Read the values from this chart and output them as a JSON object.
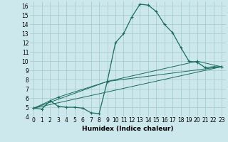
{
  "xlabel": "Humidex (Indice chaleur)",
  "bg_color": "#cce8ec",
  "line_color": "#1a6b60",
  "grid_color": "#a0c8cc",
  "xlim": [
    -0.5,
    23.5
  ],
  "ylim": [
    4,
    16.5
  ],
  "yticks": [
    4,
    5,
    6,
    7,
    8,
    9,
    10,
    11,
    12,
    13,
    14,
    15,
    16
  ],
  "xticks": [
    0,
    1,
    2,
    3,
    4,
    5,
    6,
    7,
    8,
    9,
    10,
    11,
    12,
    13,
    14,
    15,
    16,
    17,
    18,
    19,
    20,
    21,
    22,
    23
  ],
  "line1_x": [
    0,
    1,
    2,
    3,
    4,
    5,
    6,
    7,
    8,
    9,
    10,
    11,
    12,
    13,
    14,
    15,
    16,
    17,
    18,
    19,
    20,
    21,
    22,
    23
  ],
  "line1_y": [
    4.9,
    4.8,
    5.7,
    5.1,
    5.0,
    5.0,
    4.9,
    4.4,
    4.3,
    7.8,
    12.0,
    13.0,
    14.8,
    16.2,
    16.1,
    15.4,
    14.0,
    13.1,
    11.5,
    10.0,
    9.9,
    9.3,
    9.4,
    9.4
  ],
  "line2_x": [
    0,
    9,
    23
  ],
  "line2_y": [
    4.9,
    7.8,
    9.4
  ],
  "line3_x": [
    0,
    3,
    9,
    20,
    23
  ],
  "line3_y": [
    4.9,
    6.1,
    7.8,
    10.0,
    9.4
  ],
  "line4_x": [
    0,
    23
  ],
  "line4_y": [
    4.9,
    9.4
  ],
  "tick_fontsize": 5.5,
  "xlabel_fontsize": 6.5
}
